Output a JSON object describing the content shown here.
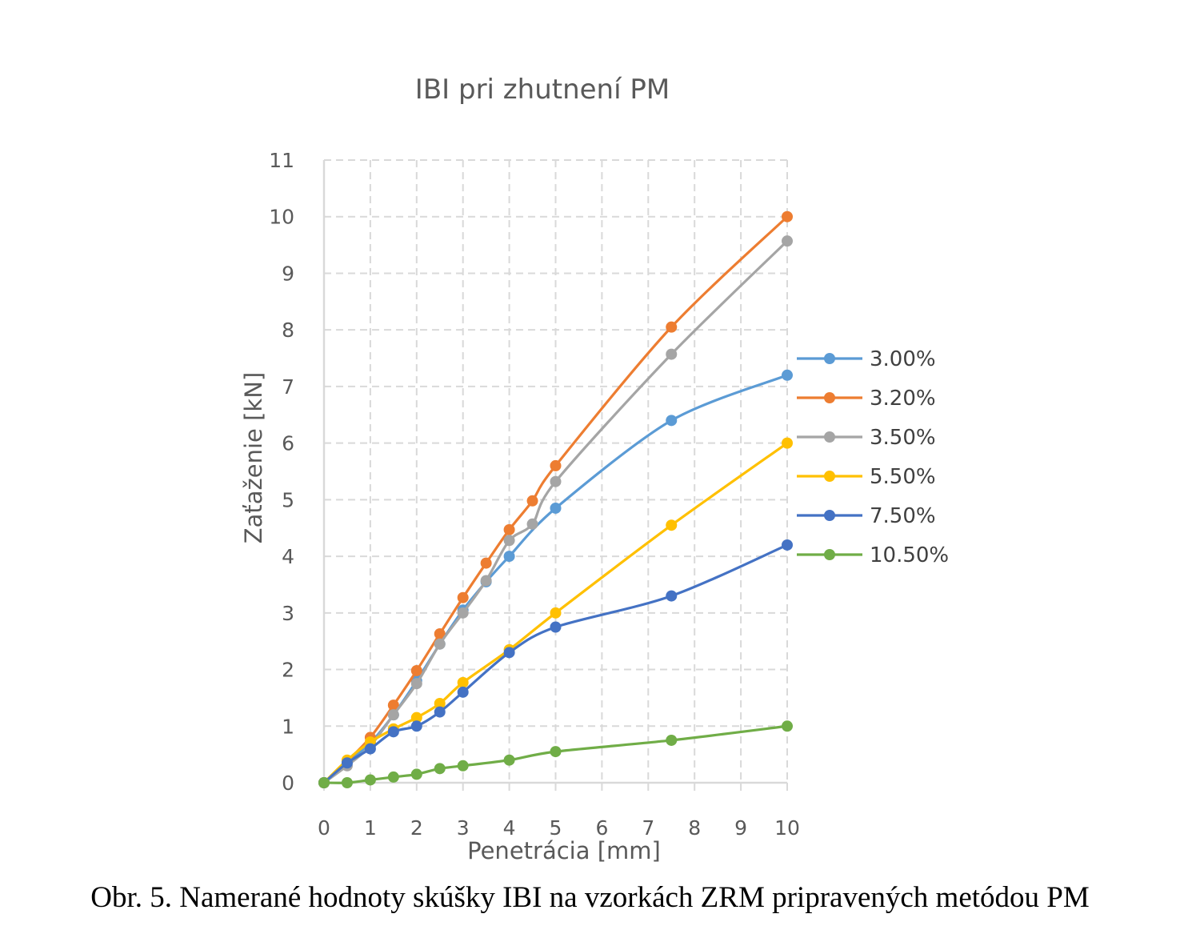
{
  "caption": "Obr. 5. Namerané hodnoty skúšky IBI na vzorkách ZRM pripravených metódou PM",
  "chart_data": {
    "type": "line",
    "title": "IBI pri zhutnení PM",
    "xlabel": "Penetrácia [mm]",
    "ylabel": "Zaťaženie [kN]",
    "xlim": [
      0,
      10
    ],
    "ylim": [
      0,
      11
    ],
    "x_ticks": [
      0,
      1,
      2,
      3,
      4,
      5,
      6,
      7,
      8,
      9,
      10
    ],
    "y_ticks": [
      0,
      1,
      2,
      3,
      4,
      5,
      6,
      7,
      8,
      9,
      10,
      11
    ],
    "grid": true,
    "legend_position": "right",
    "series": [
      {
        "name": "3.00%",
        "color": "#5B9BD5",
        "points": [
          [
            0,
            0
          ],
          [
            0.5,
            0.35
          ],
          [
            1,
            0.7
          ],
          [
            1.5,
            1.2
          ],
          [
            2,
            1.8
          ],
          [
            2.5,
            2.45
          ],
          [
            3,
            3.05
          ],
          [
            3.5,
            3.55
          ],
          [
            4,
            4.0
          ],
          [
            5,
            4.85
          ],
          [
            7.5,
            6.4
          ],
          [
            10,
            7.2
          ]
        ]
      },
      {
        "name": "3.20%",
        "color": "#ED7D31",
        "points": [
          [
            0,
            0
          ],
          [
            0.5,
            0.38
          ],
          [
            1,
            0.8
          ],
          [
            1.5,
            1.37
          ],
          [
            2,
            1.98
          ],
          [
            2.5,
            2.63
          ],
          [
            3,
            3.27
          ],
          [
            3.5,
            3.88
          ],
          [
            4,
            4.47
          ],
          [
            4.5,
            4.98
          ],
          [
            5,
            5.6
          ],
          [
            7.5,
            8.05
          ],
          [
            10,
            10.0
          ]
        ]
      },
      {
        "name": "3.50%",
        "color": "#A5A5A5",
        "points": [
          [
            0,
            0
          ],
          [
            0.5,
            0.3
          ],
          [
            1,
            0.65
          ],
          [
            1.5,
            1.2
          ],
          [
            2,
            1.75
          ],
          [
            2.5,
            2.45
          ],
          [
            3,
            3.0
          ],
          [
            3.5,
            3.57
          ],
          [
            4,
            4.28
          ],
          [
            4.5,
            4.57
          ],
          [
            5,
            5.32
          ],
          [
            7.5,
            7.57
          ],
          [
            10,
            9.57
          ]
        ]
      },
      {
        "name": "5.50%",
        "color": "#FFC000",
        "points": [
          [
            0,
            0
          ],
          [
            0.5,
            0.4
          ],
          [
            1,
            0.72
          ],
          [
            1.5,
            0.95
          ],
          [
            2,
            1.15
          ],
          [
            2.5,
            1.4
          ],
          [
            3,
            1.77
          ],
          [
            4,
            2.35
          ],
          [
            5,
            3.0
          ],
          [
            7.5,
            4.55
          ],
          [
            10,
            6.0
          ]
        ]
      },
      {
        "name": "7.50%",
        "color": "#4472C4",
        "points": [
          [
            0,
            0
          ],
          [
            0.5,
            0.35
          ],
          [
            1,
            0.6
          ],
          [
            1.5,
            0.9
          ],
          [
            2,
            1.0
          ],
          [
            2.5,
            1.25
          ],
          [
            3,
            1.6
          ],
          [
            4,
            2.3
          ],
          [
            5,
            2.75
          ],
          [
            7.5,
            3.3
          ],
          [
            10,
            4.2
          ]
        ]
      },
      {
        "name": "10.50%",
        "color": "#70AD47",
        "points": [
          [
            0,
            0
          ],
          [
            0.5,
            0.0
          ],
          [
            1,
            0.05
          ],
          [
            1.5,
            0.1
          ],
          [
            2,
            0.15
          ],
          [
            2.5,
            0.25
          ],
          [
            3,
            0.3
          ],
          [
            4,
            0.4
          ],
          [
            5,
            0.55
          ],
          [
            7.5,
            0.75
          ],
          [
            10,
            1.0
          ]
        ]
      }
    ]
  }
}
